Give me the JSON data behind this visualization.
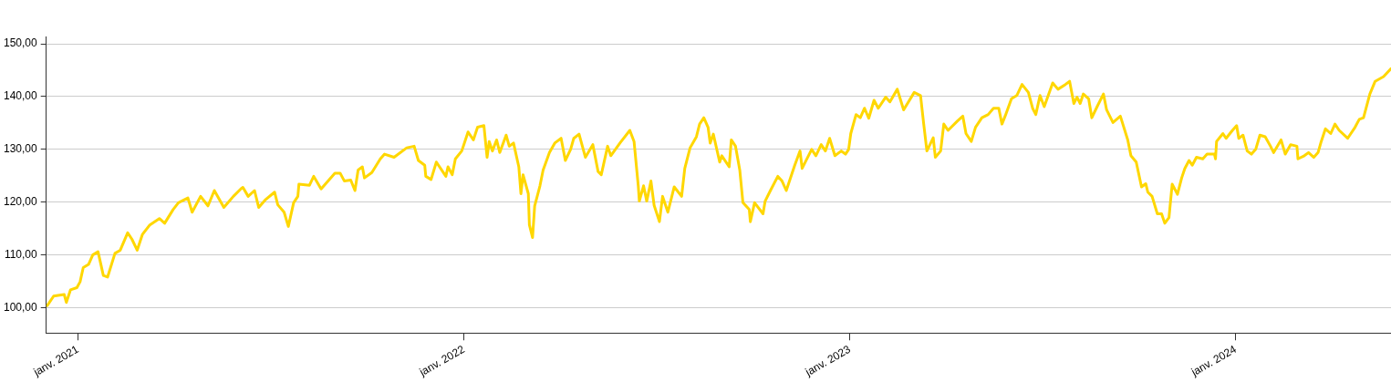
{
  "chart_data": {
    "type": "line",
    "x": [
      "2020-12-03",
      "2020-12-09",
      "2020-12-19",
      "2020-12-21",
      "2020-12-25",
      "2020-12-31",
      "2021-01-03",
      "2021-01-06",
      "2021-01-11",
      "2021-01-15",
      "2021-01-20",
      "2021-01-25",
      "2021-01-29",
      "2021-02-05",
      "2021-02-10",
      "2021-02-17",
      "2021-02-21",
      "2021-02-26",
      "2021-03-03",
      "2021-03-10",
      "2021-03-19",
      "2021-03-24",
      "2021-04-01",
      "2021-04-06",
      "2021-04-15",
      "2021-04-19",
      "2021-04-27",
      "2021-05-04",
      "2021-05-10",
      "2021-05-19",
      "2021-05-28",
      "2021-06-04",
      "2021-06-06",
      "2021-06-11",
      "2021-06-17",
      "2021-06-21",
      "2021-06-27",
      "2021-07-06",
      "2021-07-09",
      "2021-07-15",
      "2021-07-19",
      "2021-07-24",
      "2021-07-28",
      "2021-07-29",
      "2021-08-08",
      "2021-08-12",
      "2021-08-19",
      "2021-09-01",
      "2021-09-06",
      "2021-09-10",
      "2021-09-16",
      "2021-09-20",
      "2021-09-23",
      "2021-09-27",
      "2021-09-29",
      "2021-10-06",
      "2021-10-14",
      "2021-10-18",
      "2021-10-27",
      "2021-11-08",
      "2021-11-15",
      "2021-11-19",
      "2021-11-25",
      "2021-11-26",
      "2021-12-01",
      "2021-12-06",
      "2021-12-15",
      "2021-12-17",
      "2021-12-21",
      "2021-12-24",
      "2021-12-30",
      "2022-01-05",
      "2022-01-10",
      "2022-01-14",
      "2022-01-20",
      "2022-01-23",
      "2022-01-25",
      "2022-01-28",
      "2022-02-01",
      "2022-02-04",
      "2022-02-10",
      "2022-02-13",
      "2022-02-17",
      "2022-02-22",
      "2022-02-24",
      "2022-02-26",
      "2022-03-03",
      "2022-03-04",
      "2022-03-07",
      "2022-03-09",
      "2022-03-14",
      "2022-03-17",
      "2022-03-23",
      "2022-03-28",
      "2022-04-03",
      "2022-04-07",
      "2022-04-12",
      "2022-04-15",
      "2022-04-20",
      "2022-04-26",
      "2022-05-03",
      "2022-05-08",
      "2022-05-11",
      "2022-05-17",
      "2022-05-20",
      "2022-05-29",
      "2022-06-07",
      "2022-06-11",
      "2022-06-15",
      "2022-06-16",
      "2022-06-20",
      "2022-06-23",
      "2022-06-27",
      "2022-06-30",
      "2022-07-05",
      "2022-07-08",
      "2022-07-13",
      "2022-07-19",
      "2022-07-26",
      "2022-07-29",
      "2022-08-03",
      "2022-08-09",
      "2022-08-12",
      "2022-08-16",
      "2022-08-20",
      "2022-08-22",
      "2022-08-25",
      "2022-08-31",
      "2022-09-02",
      "2022-09-09",
      "2022-09-11",
      "2022-09-15",
      "2022-09-19",
      "2022-09-22",
      "2022-09-28",
      "2022-09-29",
      "2022-10-03",
      "2022-10-11",
      "2022-10-13",
      "2022-10-18",
      "2022-10-25",
      "2022-10-29",
      "2022-11-02",
      "2022-11-10",
      "2022-11-15",
      "2022-11-17",
      "2022-11-26",
      "2022-11-30",
      "2022-12-05",
      "2022-12-09",
      "2022-12-13",
      "2022-12-18",
      "2022-12-24",
      "2022-12-28",
      "2022-12-31",
      "2023-01-02",
      "2023-01-07",
      "2023-01-11",
      "2023-01-15",
      "2023-01-19",
      "2023-01-24",
      "2023-01-28",
      "2023-02-04",
      "2023-02-08",
      "2023-02-15",
      "2023-02-21",
      "2023-03-03",
      "2023-03-09",
      "2023-03-12",
      "2023-03-15",
      "2023-03-21",
      "2023-03-23",
      "2023-03-28",
      "2023-03-31",
      "2023-04-04",
      "2023-04-13",
      "2023-04-18",
      "2023-04-21",
      "2023-04-26",
      "2023-04-30",
      "2023-05-06",
      "2023-05-12",
      "2023-05-17",
      "2023-05-22",
      "2023-05-25",
      "2023-05-28",
      "2023-06-03",
      "2023-06-08",
      "2023-06-13",
      "2023-06-19",
      "2023-06-23",
      "2023-06-26",
      "2023-06-30",
      "2023-07-04",
      "2023-07-12",
      "2023-07-17",
      "2023-07-24",
      "2023-07-28",
      "2023-08-01",
      "2023-08-04",
      "2023-08-07",
      "2023-08-10",
      "2023-08-15",
      "2023-08-18",
      "2023-08-23",
      "2023-08-29",
      "2023-09-01",
      "2023-09-07",
      "2023-09-14",
      "2023-09-21",
      "2023-09-24",
      "2023-09-29",
      "2023-10-04",
      "2023-10-08",
      "2023-10-10",
      "2023-10-14",
      "2023-10-19",
      "2023-10-23",
      "2023-10-26",
      "2023-10-30",
      "2023-11-02",
      "2023-11-07",
      "2023-11-11",
      "2023-11-14",
      "2023-11-18",
      "2023-11-21",
      "2023-11-25",
      "2023-12-01",
      "2023-12-05",
      "2023-12-12",
      "2023-12-13",
      "2023-12-14",
      "2023-12-20",
      "2023-12-23",
      "2023-12-29",
      "2024-01-02",
      "2024-01-04",
      "2024-01-08",
      "2024-01-12",
      "2024-01-16",
      "2024-01-20",
      "2024-01-24",
      "2024-01-29",
      "2024-02-03",
      "2024-02-06",
      "2024-02-13",
      "2024-02-17",
      "2024-02-22",
      "2024-02-28",
      "2024-02-29",
      "2024-03-06",
      "2024-03-10",
      "2024-03-15",
      "2024-03-19",
      "2024-03-22",
      "2024-03-26",
      "2024-03-31",
      "2024-04-04",
      "2024-04-08",
      "2024-04-16",
      "2024-04-18",
      "2024-04-23",
      "2024-04-27",
      "2024-05-01",
      "2024-05-07",
      "2024-05-12",
      "2024-05-20",
      "2024-05-27"
    ],
    "series": [
      {
        "color": "#ffd700",
        "values": [
          100.4,
          102.2,
          102.5,
          101.0,
          103.4,
          103.8,
          104.9,
          107.6,
          108.2,
          110.0,
          110.6,
          106.1,
          105.8,
          110.3,
          110.9,
          114.2,
          113.0,
          110.9,
          113.9,
          115.7,
          116.9,
          116.0,
          118.6,
          119.9,
          120.8,
          118.1,
          121.1,
          119.3,
          122.2,
          119.0,
          121.1,
          122.5,
          122.8,
          121.1,
          122.2,
          119.0,
          120.4,
          121.9,
          119.5,
          118.1,
          115.4,
          119.9,
          121.1,
          123.4,
          123.2,
          124.9,
          122.5,
          125.5,
          125.5,
          124.0,
          124.2,
          122.2,
          126.1,
          126.7,
          124.6,
          125.6,
          128.2,
          129.1,
          128.5,
          130.3,
          130.6,
          127.9,
          127.0,
          124.9,
          124.3,
          127.6,
          124.9,
          126.7,
          125.2,
          128.2,
          129.7,
          133.3,
          131.8,
          134.2,
          134.5,
          128.5,
          131.5,
          129.7,
          131.8,
          129.4,
          132.7,
          130.6,
          131.2,
          126.7,
          121.6,
          125.2,
          121.6,
          115.7,
          113.3,
          119.3,
          123.1,
          126.1,
          129.4,
          131.2,
          132.1,
          127.9,
          130.0,
          132.1,
          132.9,
          128.5,
          130.9,
          125.8,
          125.2,
          130.6,
          128.8,
          131.3,
          133.6,
          131.5,
          123.1,
          120.2,
          123.1,
          120.2,
          124.0,
          119.4,
          116.3,
          121.1,
          118.1,
          122.9,
          121.1,
          126.4,
          130.3,
          132.4,
          134.8,
          136.0,
          134.2,
          131.2,
          132.9,
          127.6,
          128.8,
          126.7,
          131.8,
          130.6,
          126.1,
          119.9,
          118.6,
          116.3,
          119.9,
          117.8,
          120.2,
          122.2,
          124.9,
          124.0,
          122.2,
          127.0,
          129.7,
          126.4,
          130.0,
          128.8,
          130.9,
          129.7,
          132.1,
          128.8,
          129.7,
          129.1,
          130.0,
          133.0,
          136.6,
          136.0,
          137.8,
          135.9,
          139.3,
          137.8,
          139.9,
          139.0,
          141.4,
          137.5,
          140.8,
          140.2,
          134.8,
          129.7,
          132.2,
          128.5,
          129.7,
          134.8,
          133.6,
          135.4,
          136.3,
          133.0,
          131.5,
          134.2,
          136.0,
          136.6,
          137.8,
          137.8,
          134.8,
          136.3,
          139.6,
          140.2,
          142.3,
          140.8,
          137.8,
          136.6,
          140.2,
          138.1,
          142.6,
          141.4,
          142.3,
          142.9,
          138.7,
          139.9,
          138.7,
          140.5,
          139.6,
          136.0,
          138.1,
          140.5,
          137.5,
          135.1,
          136.3,
          131.8,
          128.8,
          127.6,
          122.9,
          123.5,
          121.9,
          121.1,
          117.8,
          117.8,
          116.0,
          117.1,
          123.4,
          121.5,
          124.6,
          126.4,
          127.9,
          127.0,
          128.5,
          128.2,
          129.1,
          129.1,
          128.2,
          131.5,
          133.0,
          132.1,
          133.6,
          134.5,
          132.1,
          132.7,
          129.7,
          129.1,
          130.0,
          132.7,
          132.4,
          130.6,
          129.4,
          131.8,
          129.1,
          130.9,
          130.6,
          128.2,
          128.8,
          129.4,
          128.5,
          129.4,
          131.5,
          133.9,
          133.0,
          134.8,
          133.6,
          132.1,
          132.7,
          134.2,
          135.7,
          136.0,
          140.5,
          142.9,
          143.8,
          145.3
        ]
      }
    ],
    "xlim": [
      "2020-12-02",
      "2024-05-27"
    ],
    "xticks": [
      {
        "value": "2021-01-01",
        "label": "janv. 2021"
      },
      {
        "value": "2022-01-01",
        "label": "janv. 2022"
      },
      {
        "value": "2023-01-01",
        "label": "janv. 2023"
      },
      {
        "value": "2024-01-01",
        "label": "janv. 2024"
      }
    ],
    "ylim": [
      95.2,
      151.4
    ],
    "yticks": [
      {
        "value": 100,
        "label": "100,00"
      },
      {
        "value": 110,
        "label": "110,00"
      },
      {
        "value": 120,
        "label": "120,00"
      },
      {
        "value": 130,
        "label": "130,00"
      },
      {
        "value": 140,
        "label": "140,00"
      },
      {
        "value": 150,
        "label": "150,00"
      }
    ],
    "grid": "y",
    "legend": false,
    "marker": "none",
    "line_style": "solid"
  }
}
